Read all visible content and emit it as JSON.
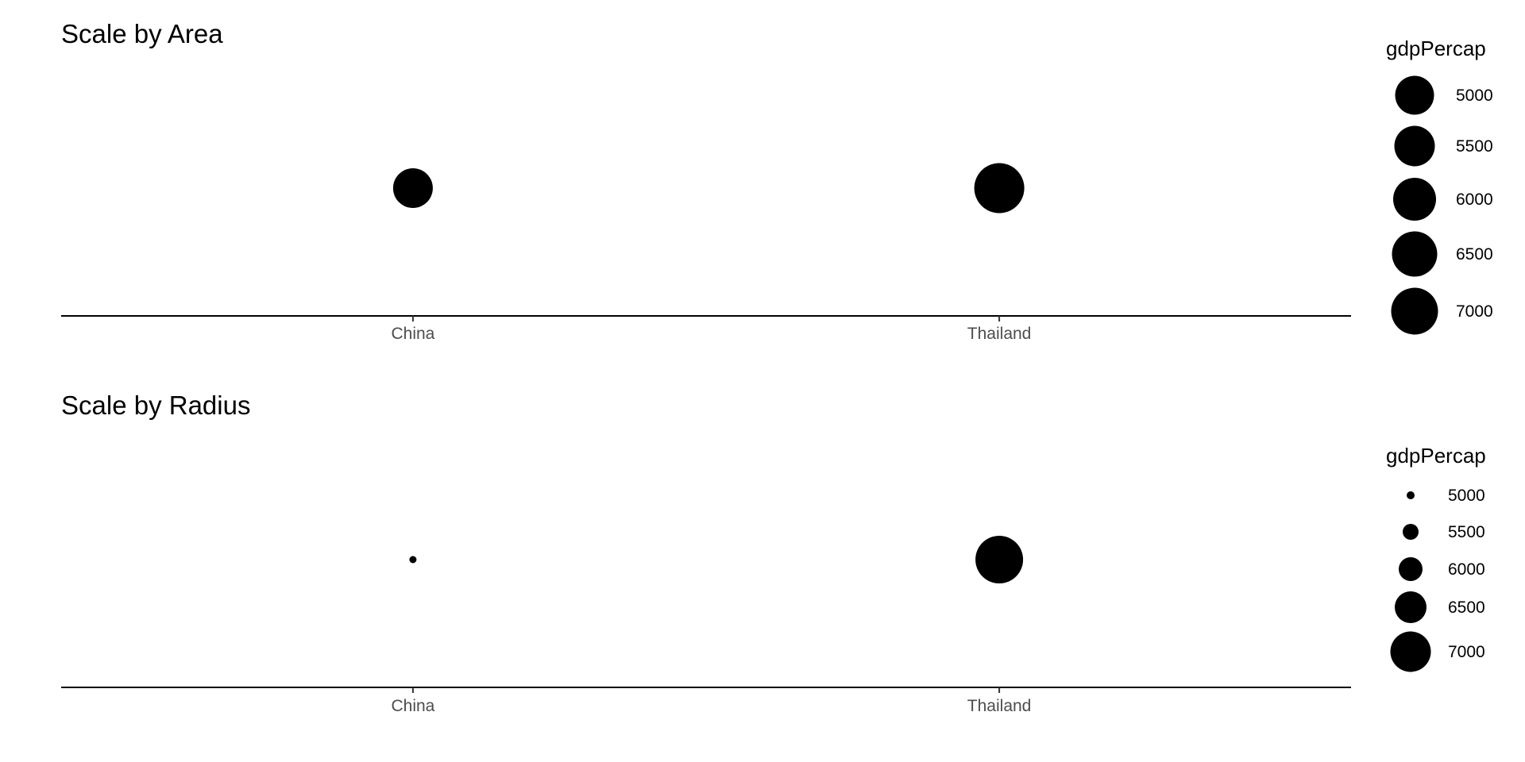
{
  "chart_data": [
    {
      "type": "scatter",
      "title": "Scale by Area",
      "size_scaling": "area",
      "categories": [
        "China",
        "Thailand"
      ],
      "size_variable": "gdpPercap",
      "size_values": [
        5000,
        7000
      ],
      "y": [
        0,
        0
      ],
      "legend": {
        "title": "gdpPercap",
        "placement": "right",
        "breaks": [
          "5000",
          "5500",
          "6000",
          "6500",
          "7000"
        ]
      },
      "grid": false
    },
    {
      "type": "scatter",
      "title": "Scale by Radius",
      "size_scaling": "radius",
      "categories": [
        "China",
        "Thailand"
      ],
      "size_variable": "gdpPercap",
      "size_values": [
        5000,
        7000
      ],
      "y": [
        0,
        0
      ],
      "legend": {
        "title": "gdpPercap",
        "placement": "right",
        "breaks": [
          "5000",
          "5500",
          "6000",
          "6500",
          "7000"
        ]
      },
      "grid": false
    }
  ]
}
